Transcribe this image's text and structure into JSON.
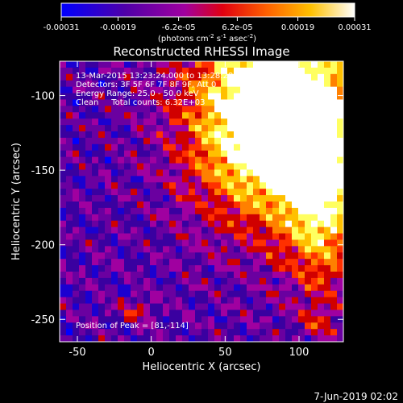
{
  "chart_data": {
    "type": "heatmap",
    "title": "Reconstructed RHESSI Image",
    "xlabel": "Heliocentric X (arcsec)",
    "ylabel": "Heliocentric Y (arcsec)",
    "xlim": [
      -62,
      130
    ],
    "ylim": [
      -265,
      -77
    ],
    "x_ticks": [
      -50,
      0,
      50,
      100
    ],
    "y_ticks": [
      -100,
      -150,
      -200,
      -250
    ],
    "colorbar": {
      "ticks": [
        "-0.00031",
        "-0.00019",
        "-6.2e-05",
        "6.2e-05",
        "0.00019",
        "0.00031"
      ],
      "tick_values": [
        -0.00031,
        -0.00019,
        -6.2e-05,
        6.2e-05,
        0.00019,
        0.00031
      ],
      "range": [
        -0.00031,
        0.00031
      ],
      "unit_text": "(photons cm",
      "unit_exp1": "-2",
      "unit_mid": " s",
      "unit_exp2": "-1",
      "unit_mid2": " asec",
      "unit_exp3": "-2",
      "unit_end": ")"
    },
    "peak": [
      81,
      -114
    ],
    "annotations": {
      "time_line": "13-Mar-2015 13:23:24.000 to 13:28:28.000",
      "detectors_line": "Detectors: 3F 5F 6F 7F 8F 9F, Att 0",
      "energy_line": "Energy Range: 25.0 - 50.0 keV",
      "clean_line": "Clean     Total counts: 6.32E+03",
      "peak_line": "Position of Peak = [81,-114]"
    },
    "colormap_colors": [
      "#0000ff",
      "#1b00d0",
      "#3a00a0",
      "#6a00a0",
      "#a000a0",
      "#d00000",
      "#ff3000",
      "#ff8000",
      "#ffc000",
      "#ffff60",
      "#ffffff"
    ]
  },
  "footer": {
    "date": "7-Jun-2019 02:02"
  }
}
